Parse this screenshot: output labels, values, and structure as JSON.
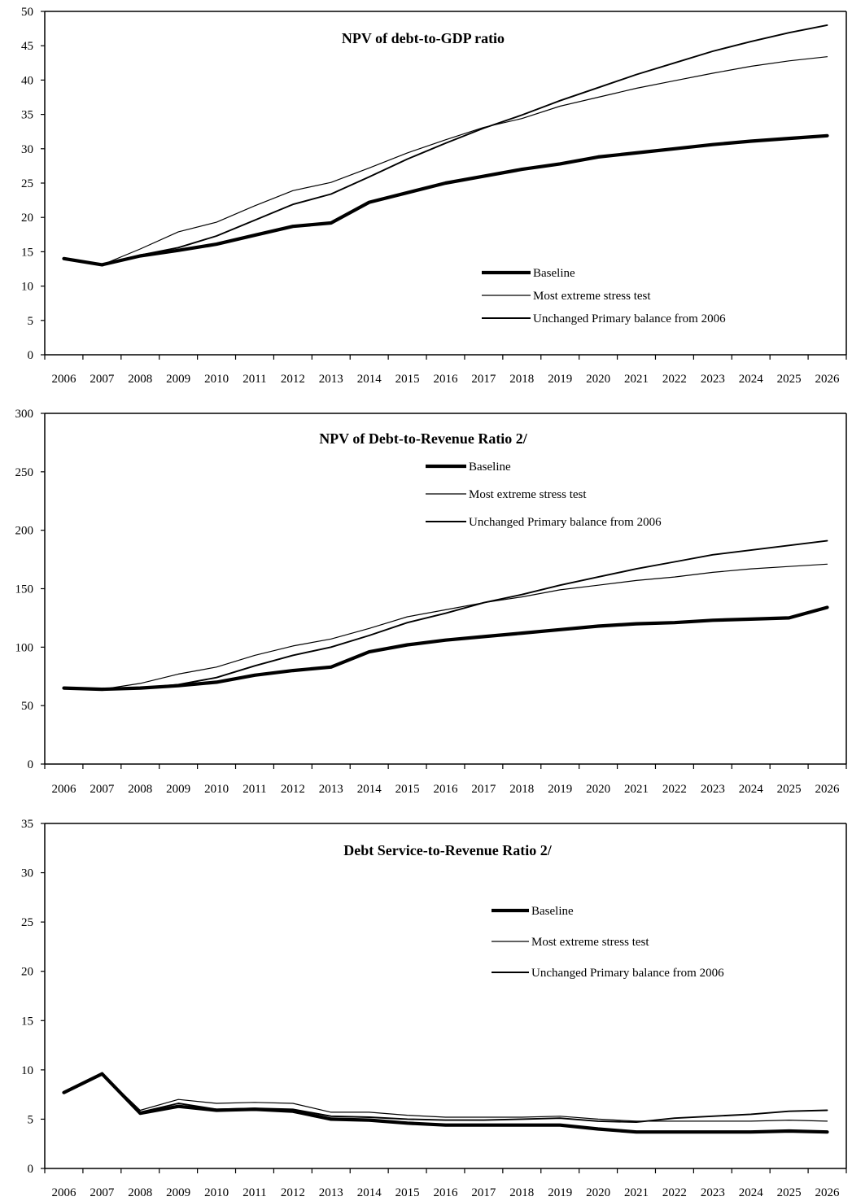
{
  "chart_data": [
    {
      "type": "line",
      "title": "NPV of debt-to-GDP ratio",
      "xlabel": "",
      "ylabel": "",
      "ylim": [
        0,
        50
      ],
      "yticks": [
        0,
        5,
        10,
        15,
        20,
        25,
        30,
        35,
        40,
        45,
        50
      ],
      "grid": false,
      "legend_position": "bottom-right",
      "categories": [
        "2006",
        "2007",
        "2008",
        "2009",
        "2010",
        "2011",
        "2012",
        "2013",
        "2014",
        "2015",
        "2016",
        "2017",
        "2018",
        "2019",
        "2020",
        "2021",
        "2022",
        "2023",
        "2024",
        "2025",
        "2026"
      ],
      "series": [
        {
          "name": "Baseline",
          "style": "thick",
          "values": [
            14.0,
            13.1,
            14.4,
            15.2,
            16.1,
            17.4,
            18.7,
            19.2,
            22.2,
            23.6,
            25.0,
            26.0,
            27.0,
            27.8,
            28.8,
            29.4,
            30.0,
            30.6,
            31.1,
            31.5,
            31.9
          ]
        },
        {
          "name": "Most extreme stress test",
          "style": "thin",
          "values": [
            14.0,
            13.1,
            15.4,
            17.9,
            19.3,
            21.7,
            23.9,
            25.1,
            27.2,
            29.4,
            31.3,
            33.1,
            34.4,
            36.2,
            37.5,
            38.8,
            39.9,
            41.0,
            42.0,
            42.8,
            43.4
          ]
        },
        {
          "name": "Unchanged Primary balance from 2006",
          "style": "medium",
          "values": [
            14.0,
            13.1,
            14.5,
            15.6,
            17.3,
            19.6,
            21.9,
            23.4,
            25.9,
            28.5,
            30.8,
            33.0,
            34.9,
            37.0,
            38.9,
            40.8,
            42.5,
            44.2,
            45.6,
            46.9,
            48.0
          ]
        }
      ]
    },
    {
      "type": "line",
      "title": "NPV of Debt-to-Revenue Ratio 2/",
      "xlabel": "",
      "ylabel": "",
      "ylim": [
        0,
        300
      ],
      "yticks": [
        0,
        50,
        100,
        150,
        200,
        250,
        300
      ],
      "grid": false,
      "legend_position": "top-center",
      "categories": [
        "2006",
        "2007",
        "2008",
        "2009",
        "2010",
        "2011",
        "2012",
        "2013",
        "2014",
        "2015",
        "2016",
        "2017",
        "2018",
        "2019",
        "2020",
        "2021",
        "2022",
        "2023",
        "2024",
        "2025",
        "2026"
      ],
      "series": [
        {
          "name": "Baseline",
          "style": "thick",
          "values": [
            65,
            64,
            65,
            67,
            70,
            76,
            80,
            83,
            96,
            102,
            106,
            109,
            112,
            115,
            118,
            120,
            121,
            123,
            124,
            125,
            134
          ]
        },
        {
          "name": "Most extreme stress test",
          "style": "thin",
          "values": [
            65,
            64,
            69,
            77,
            83,
            93,
            101,
            107,
            116,
            126,
            132,
            138,
            143,
            149,
            153,
            157,
            160,
            164,
            167,
            169,
            171
          ]
        },
        {
          "name": "Unchanged Primary balance from 2006",
          "style": "medium",
          "values": [
            65,
            64,
            65,
            68,
            74,
            84,
            93,
            100,
            110,
            121,
            129,
            138,
            145,
            153,
            160,
            167,
            173,
            179,
            183,
            187,
            191
          ]
        }
      ]
    },
    {
      "type": "line",
      "title": "Debt Service-to-Revenue Ratio 2/",
      "xlabel": "",
      "ylabel": "",
      "ylim": [
        0,
        35
      ],
      "yticks": [
        0,
        5,
        10,
        15,
        20,
        25,
        30,
        35
      ],
      "grid": false,
      "legend_position": "middle-right",
      "categories": [
        "2006",
        "2007",
        "2008",
        "2009",
        "2010",
        "2011",
        "2012",
        "2013",
        "2014",
        "2015",
        "2016",
        "2017",
        "2018",
        "2019",
        "2020",
        "2021",
        "2022",
        "2023",
        "2024",
        "2025",
        "2026"
      ],
      "series": [
        {
          "name": "Baseline",
          "style": "thick",
          "values": [
            7.7,
            9.6,
            5.6,
            6.3,
            5.9,
            6.0,
            5.8,
            5.0,
            4.9,
            4.6,
            4.4,
            4.4,
            4.4,
            4.4,
            4.0,
            3.7,
            3.7,
            3.7,
            3.7,
            3.8,
            3.7
          ]
        },
        {
          "name": "Most extreme stress test",
          "style": "thin",
          "values": [
            7.7,
            9.6,
            5.9,
            7.0,
            6.6,
            6.7,
            6.6,
            5.7,
            5.7,
            5.4,
            5.2,
            5.2,
            5.2,
            5.3,
            5.0,
            4.8,
            4.8,
            4.8,
            4.8,
            4.9,
            4.8
          ]
        },
        {
          "name": "Unchanged Primary balance from 2006",
          "style": "medium",
          "values": [
            7.7,
            9.6,
            5.7,
            6.6,
            6.0,
            6.1,
            6.0,
            5.3,
            5.2,
            5.0,
            4.9,
            4.9,
            5.0,
            5.1,
            4.8,
            4.7,
            5.1,
            5.3,
            5.5,
            5.8,
            5.9
          ]
        }
      ]
    }
  ]
}
